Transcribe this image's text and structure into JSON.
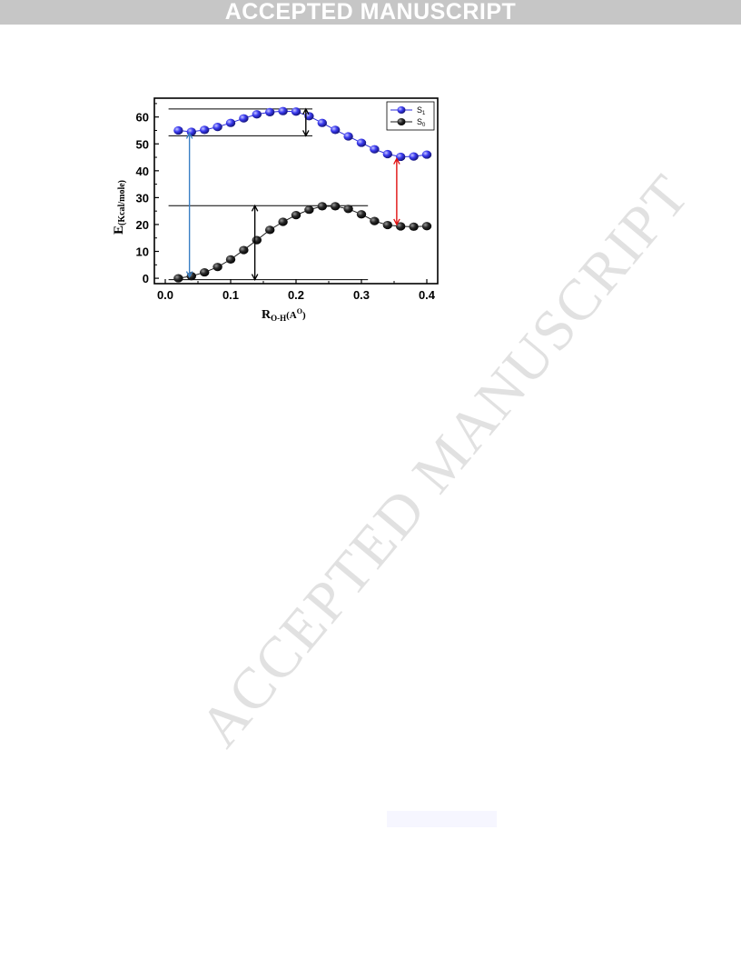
{
  "banner": {
    "text": "ACCEPTED MANUSCRIPT"
  },
  "watermark": {
    "text": "ACCEPTED MANUSCRIPT"
  },
  "chart_data": {
    "type": "line",
    "ylabel_main": "E",
    "ylabel_sub": "(Kcal/mole)",
    "xlabel_main": "R",
    "xlabel_sub": "O-H",
    "xlabel_unit": "(A",
    "xlabel_unit_sup": "O",
    "xlabel_close": ")",
    "xlim": [
      0.0,
      0.4
    ],
    "ylim": [
      -2,
      67
    ],
    "x_ticks": [
      "0.0",
      "0.1",
      "0.2",
      "0.3",
      "0.4"
    ],
    "y_ticks": [
      "0",
      "10",
      "20",
      "30",
      "40",
      "50",
      "60"
    ],
    "legend_position": "top-right",
    "series": [
      {
        "name": "S",
        "name_sub": "1",
        "color": "#2b2bd9",
        "x": [
          0.02,
          0.04,
          0.06,
          0.08,
          0.1,
          0.12,
          0.14,
          0.16,
          0.18,
          0.2,
          0.22,
          0.24,
          0.26,
          0.28,
          0.3,
          0.32,
          0.34,
          0.36,
          0.38,
          0.4
        ],
        "y": [
          55.0,
          54.5,
          55.2,
          56.3,
          57.8,
          59.5,
          61.0,
          61.8,
          62.2,
          62.0,
          60.3,
          57.8,
          55.2,
          52.8,
          50.4,
          48.0,
          46.2,
          45.2,
          45.3,
          46.0
        ]
      },
      {
        "name": "S",
        "name_sub": "0",
        "color": "#1a1a1a",
        "x": [
          0.02,
          0.04,
          0.06,
          0.08,
          0.1,
          0.12,
          0.14,
          0.16,
          0.18,
          0.2,
          0.22,
          0.24,
          0.26,
          0.28,
          0.3,
          0.32,
          0.34,
          0.36,
          0.38,
          0.4
        ],
        "y": [
          0.0,
          0.8,
          2.2,
          4.2,
          7.0,
          10.5,
          14.2,
          18.0,
          21.0,
          23.5,
          25.5,
          26.8,
          26.8,
          25.8,
          23.8,
          21.3,
          19.8,
          19.3,
          19.2,
          19.4
        ]
      }
    ],
    "reference_lines": [
      {
        "y": 63,
        "x0": 0.005,
        "x1": 0.225
      },
      {
        "y": 53,
        "x0": 0.005,
        "x1": 0.225
      },
      {
        "y": 27,
        "x0": 0.005,
        "x1": 0.31
      },
      {
        "y": -0.5,
        "x0": 0.005,
        "x1": 0.31
      }
    ],
    "arrows": [
      {
        "x": 0.037,
        "y0": 0.5,
        "y1": 54,
        "color": "#3a7fc4",
        "double": true
      },
      {
        "x": 0.215,
        "y0": 53,
        "y1": 63,
        "color": "#000000",
        "double": true
      },
      {
        "x": 0.137,
        "y0": -0.5,
        "y1": 27,
        "color": "#000000",
        "double": true
      },
      {
        "x": 0.354,
        "y0": 20,
        "y1": 44.5,
        "color": "#e01010",
        "double": true
      }
    ]
  }
}
